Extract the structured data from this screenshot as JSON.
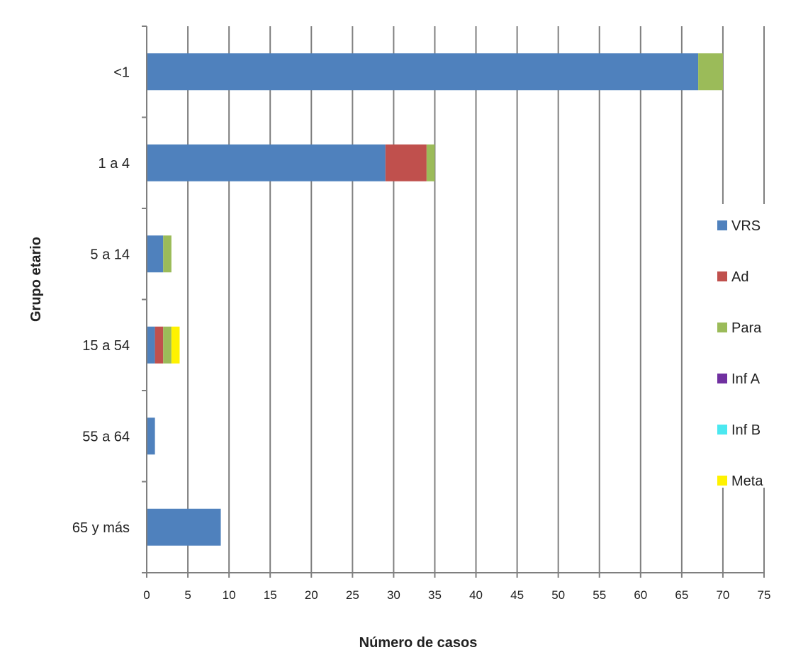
{
  "chart_data": {
    "type": "bar",
    "orientation": "horizontal",
    "stacked": true,
    "title": "",
    "xlabel": "Número de casos",
    "ylabel": "Grupo etario",
    "categories": [
      "<1",
      "1 a 4",
      "5 a 14",
      "15 a 54",
      "55 a 64",
      "65 y más"
    ],
    "xlim": [
      0,
      75
    ],
    "xticks": [
      0,
      5,
      10,
      15,
      20,
      25,
      30,
      35,
      40,
      45,
      50,
      55,
      60,
      65,
      70,
      75
    ],
    "grid": "vertical",
    "legend_position": "right",
    "series": [
      {
        "name": "VRS",
        "color": "#4F81BD",
        "values": [
          67,
          29,
          2,
          1,
          1,
          9
        ]
      },
      {
        "name": "Ad",
        "color": "#C0504D",
        "values": [
          0,
          5,
          0,
          1,
          0,
          0
        ]
      },
      {
        "name": "Para",
        "color": "#9BBB59",
        "values": [
          3,
          1,
          1,
          1,
          0,
          0
        ]
      },
      {
        "name": "Inf A",
        "color": "#7030A0",
        "values": [
          0,
          0,
          0,
          0,
          0,
          0
        ]
      },
      {
        "name": "Inf B",
        "color": "#4BE8F0",
        "values": [
          0,
          0,
          0,
          0,
          0,
          0
        ]
      },
      {
        "name": "Meta",
        "color": "#FFF200",
        "values": [
          0,
          0,
          0,
          1,
          0,
          0
        ]
      }
    ]
  }
}
